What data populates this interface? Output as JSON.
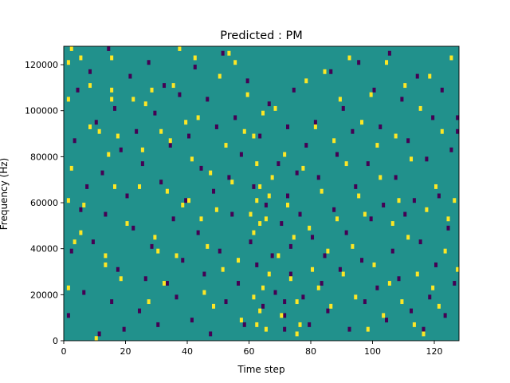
{
  "chart_data": {
    "type": "heatmap",
    "title": "Predicted : PM",
    "xlabel": "Time step",
    "ylabel": "Frequency (Hz)",
    "xlim": [
      0,
      128
    ],
    "ylim": [
      0,
      128000
    ],
    "xticks": [
      0,
      20,
      40,
      60,
      80,
      100,
      120
    ],
    "yticks": [
      0,
      20000,
      40000,
      60000,
      80000,
      100000,
      120000
    ],
    "ytick_labels": [
      "0",
      "20000",
      "40000",
      "60000",
      "80000",
      "100000",
      "120000"
    ],
    "grid": false,
    "legend": "none",
    "cmap": "viridis",
    "n_time_steps": 128,
    "n_freq_bins": 64,
    "freq_bin_hz": 2000,
    "background_level": 0.5,
    "colors": {
      "background": "#21918c",
      "low": "#440154",
      "high": "#fde725"
    },
    "high_cells": [
      [
        1,
        60
      ],
      [
        1,
        52
      ],
      [
        1,
        30
      ],
      [
        1,
        11
      ],
      [
        2,
        63
      ],
      [
        2,
        37
      ],
      [
        3,
        21
      ],
      [
        5,
        61
      ],
      [
        5,
        23
      ],
      [
        6,
        29
      ],
      [
        8,
        55
      ],
      [
        8,
        46
      ],
      [
        10,
        0
      ],
      [
        11,
        45
      ],
      [
        13,
        18
      ],
      [
        13,
        16
      ],
      [
        14,
        40
      ],
      [
        15,
        61
      ],
      [
        15,
        54
      ],
      [
        15,
        52
      ],
      [
        16,
        33
      ],
      [
        17,
        44
      ],
      [
        18,
        13
      ],
      [
        20,
        25
      ],
      [
        22,
        52
      ],
      [
        24,
        33
      ],
      [
        25,
        41
      ],
      [
        26,
        51
      ],
      [
        27,
        8
      ],
      [
        28,
        54
      ],
      [
        29,
        22
      ],
      [
        30,
        19
      ],
      [
        31,
        45
      ],
      [
        32,
        12
      ],
      [
        33,
        32
      ],
      [
        34,
        43
      ],
      [
        35,
        55
      ],
      [
        36,
        18
      ],
      [
        37,
        63
      ],
      [
        38,
        29
      ],
      [
        39,
        47
      ],
      [
        40,
        30
      ],
      [
        41,
        39
      ],
      [
        42,
        61
      ],
      [
        43,
        48
      ],
      [
        44,
        26
      ],
      [
        45,
        10
      ],
      [
        46,
        20
      ],
      [
        47,
        36
      ],
      [
        48,
        7
      ],
      [
        49,
        28
      ],
      [
        50,
        57
      ],
      [
        51,
        15
      ],
      [
        52,
        42
      ],
      [
        53,
        62
      ],
      [
        54,
        34
      ],
      [
        55,
        60
      ],
      [
        56,
        17
      ],
      [
        57,
        4
      ],
      [
        58,
        45
      ],
      [
        59,
        53
      ],
      [
        60,
        27
      ],
      [
        61,
        9
      ],
      [
        61,
        23
      ],
      [
        61,
        44
      ],
      [
        62,
        3
      ],
      [
        62,
        30
      ],
      [
        62,
        38
      ],
      [
        63,
        6
      ],
      [
        63,
        25
      ],
      [
        63,
        33
      ],
      [
        64,
        11
      ],
      [
        64,
        49
      ],
      [
        65,
        2
      ],
      [
        65,
        26
      ],
      [
        66,
        14
      ],
      [
        66,
        31
      ],
      [
        67,
        35
      ],
      [
        68,
        50
      ],
      [
        69,
        18
      ],
      [
        70,
        5
      ],
      [
        71,
        40
      ],
      [
        72,
        29
      ],
      [
        73,
        13
      ],
      [
        74,
        22
      ],
      [
        75,
        1
      ],
      [
        75,
        8
      ],
      [
        76,
        3
      ],
      [
        77,
        37
      ],
      [
        78,
        56
      ],
      [
        79,
        24
      ],
      [
        80,
        15
      ],
      [
        81,
        46
      ],
      [
        82,
        11
      ],
      [
        83,
        32
      ],
      [
        84,
        58
      ],
      [
        85,
        19
      ],
      [
        86,
        7
      ],
      [
        87,
        43
      ],
      [
        88,
        26
      ],
      [
        89,
        52
      ],
      [
        90,
        14
      ],
      [
        91,
        38
      ],
      [
        92,
        61
      ],
      [
        93,
        20
      ],
      [
        94,
        9
      ],
      [
        95,
        31
      ],
      [
        96,
        47
      ],
      [
        97,
        27
      ],
      [
        98,
        2
      ],
      [
        99,
        53
      ],
      [
        100,
        16
      ],
      [
        101,
        42
      ],
      [
        102,
        35
      ],
      [
        103,
        5
      ],
      [
        104,
        60
      ],
      [
        105,
        12
      ],
      [
        106,
        25
      ],
      [
        107,
        44
      ],
      [
        108,
        30
      ],
      [
        109,
        8
      ],
      [
        110,
        55
      ],
      [
        111,
        22
      ],
      [
        112,
        39
      ],
      [
        113,
        3
      ],
      [
        114,
        14
      ],
      [
        115,
        50
      ],
      [
        116,
        1
      ],
      [
        117,
        28
      ],
      [
        118,
        57
      ],
      [
        119,
        11
      ],
      [
        120,
        33
      ],
      [
        121,
        7
      ],
      [
        122,
        45
      ],
      [
        123,
        19
      ],
      [
        124,
        26
      ],
      [
        125,
        61
      ],
      [
        126,
        30
      ],
      [
        127,
        15
      ]
    ],
    "low_cells": [
      [
        1,
        5
      ],
      [
        2,
        19
      ],
      [
        3,
        43
      ],
      [
        4,
        54
      ],
      [
        5,
        28
      ],
      [
        6,
        10
      ],
      [
        7,
        33
      ],
      [
        8,
        58
      ],
      [
        9,
        21
      ],
      [
        10,
        47
      ],
      [
        11,
        1
      ],
      [
        12,
        36
      ],
      [
        13,
        27
      ],
      [
        14,
        63
      ],
      [
        15,
        8
      ],
      [
        16,
        50
      ],
      [
        17,
        15
      ],
      [
        18,
        41
      ],
      [
        19,
        2
      ],
      [
        20,
        31
      ],
      [
        21,
        57
      ],
      [
        22,
        24
      ],
      [
        23,
        45
      ],
      [
        24,
        6
      ],
      [
        25,
        38
      ],
      [
        26,
        13
      ],
      [
        27,
        60
      ],
      [
        28,
        20
      ],
      [
        29,
        49
      ],
      [
        30,
        3
      ],
      [
        31,
        34
      ],
      [
        32,
        55
      ],
      [
        33,
        12
      ],
      [
        34,
        42
      ],
      [
        35,
        26
      ],
      [
        36,
        9
      ],
      [
        37,
        53
      ],
      [
        38,
        17
      ],
      [
        39,
        30
      ],
      [
        40,
        44
      ],
      [
        41,
        4
      ],
      [
        42,
        59
      ],
      [
        43,
        23
      ],
      [
        44,
        37
      ],
      [
        45,
        14
      ],
      [
        46,
        52
      ],
      [
        47,
        1
      ],
      [
        48,
        32
      ],
      [
        49,
        46
      ],
      [
        50,
        19
      ],
      [
        51,
        62
      ],
      [
        52,
        8
      ],
      [
        53,
        35
      ],
      [
        54,
        27
      ],
      [
        55,
        48
      ],
      [
        56,
        12
      ],
      [
        57,
        40
      ],
      [
        58,
        3
      ],
      [
        59,
        56
      ],
      [
        60,
        21
      ],
      [
        61,
        33
      ],
      [
        62,
        16
      ],
      [
        63,
        44
      ],
      [
        64,
        7
      ],
      [
        65,
        29
      ],
      [
        66,
        51
      ],
      [
        67,
        18
      ],
      [
        68,
        10
      ],
      [
        69,
        38
      ],
      [
        70,
        25
      ],
      [
        71,
        2
      ],
      [
        71,
        5
      ],
      [
        71,
        8
      ],
      [
        72,
        46
      ],
      [
        72,
        31
      ],
      [
        73,
        14
      ],
      [
        73,
        20
      ],
      [
        74,
        54
      ],
      [
        75,
        36
      ],
      [
        76,
        27
      ],
      [
        77,
        9
      ],
      [
        78,
        42
      ],
      [
        79,
        3
      ],
      [
        80,
        22
      ],
      [
        81,
        47
      ],
      [
        82,
        35
      ],
      [
        83,
        12
      ],
      [
        84,
        18
      ],
      [
        85,
        6
      ],
      [
        86,
        58
      ],
      [
        87,
        28
      ],
      [
        88,
        40
      ],
      [
        89,
        15
      ],
      [
        90,
        50
      ],
      [
        91,
        23
      ],
      [
        92,
        2
      ],
      [
        93,
        45
      ],
      [
        94,
        33
      ],
      [
        95,
        60
      ],
      [
        96,
        17
      ],
      [
        97,
        8
      ],
      [
        98,
        38
      ],
      [
        99,
        26
      ],
      [
        100,
        54
      ],
      [
        101,
        11
      ],
      [
        102,
        46
      ],
      [
        103,
        29
      ],
      [
        104,
        4
      ],
      [
        105,
        62
      ],
      [
        106,
        19
      ],
      [
        107,
        35
      ],
      [
        108,
        13
      ],
      [
        109,
        52
      ],
      [
        110,
        27
      ],
      [
        111,
        43
      ],
      [
        112,
        6
      ],
      [
        113,
        30
      ],
      [
        114,
        57
      ],
      [
        115,
        21
      ],
      [
        116,
        2
      ],
      [
        117,
        39
      ],
      [
        118,
        9
      ],
      [
        119,
        48
      ],
      [
        120,
        16
      ],
      [
        121,
        31
      ],
      [
        122,
        54
      ],
      [
        123,
        5
      ],
      [
        124,
        24
      ],
      [
        125,
        41
      ],
      [
        126,
        12
      ],
      [
        127,
        45
      ],
      [
        127,
        48
      ]
    ]
  }
}
